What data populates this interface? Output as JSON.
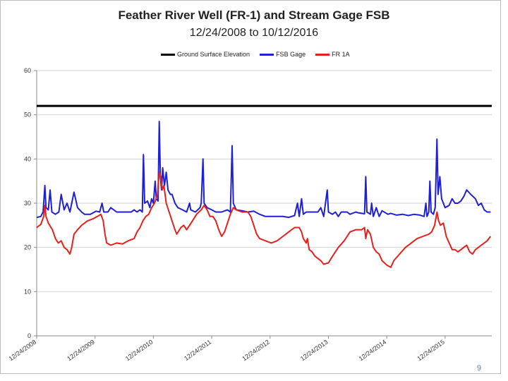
{
  "chart_data": {
    "type": "line",
    "title": "Feather River Well (FR-1) and Stream Gage FSB",
    "subtitle": "12/24/2008 to 10/12/2016",
    "xlabel": "",
    "ylabel": "",
    "ylim": [
      0,
      60
    ],
    "yticks": [
      "0",
      "10",
      "20",
      "30",
      "40",
      "50",
      "60"
    ],
    "xlim": [
      2008.98,
      2016.78
    ],
    "x_tick_labels": [
      {
        "label": "12/24/2008",
        "x": 2008.98
      },
      {
        "label": "12/24/2009",
        "x": 2009.98
      },
      {
        "label": "12/24/2010",
        "x": 2010.98
      },
      {
        "label": "12/24/2011",
        "x": 2011.98
      },
      {
        "label": "12/24/2012",
        "x": 2012.98
      },
      {
        "label": "12/24/2013",
        "x": 2013.98
      },
      {
        "label": "12/24/2014",
        "x": 2014.98
      },
      {
        "label": "12/24/2015",
        "x": 2015.98
      }
    ],
    "grid": "horizontal",
    "legend_position": "top",
    "series": [
      {
        "name": "Ground Surface Elevation",
        "color": "#000000",
        "points": [
          [
            2008.98,
            52
          ],
          [
            2016.78,
            52
          ]
        ]
      },
      {
        "name": "FSB Gage",
        "color": "#1f1fd6",
        "points": [
          [
            2008.98,
            26.8
          ],
          [
            2009.05,
            27
          ],
          [
            2009.09,
            28
          ],
          [
            2009.12,
            34
          ],
          [
            2009.14,
            29
          ],
          [
            2009.18,
            28.5
          ],
          [
            2009.21,
            33
          ],
          [
            2009.24,
            28
          ],
          [
            2009.3,
            27.5
          ],
          [
            2009.36,
            28
          ],
          [
            2009.4,
            32
          ],
          [
            2009.45,
            28.5
          ],
          [
            2009.5,
            30
          ],
          [
            2009.55,
            28
          ],
          [
            2009.62,
            32.5
          ],
          [
            2009.68,
            29
          ],
          [
            2009.75,
            28
          ],
          [
            2009.8,
            27.5
          ],
          [
            2009.9,
            27.5
          ],
          [
            2010.0,
            28.2
          ],
          [
            2010.06,
            28
          ],
          [
            2010.1,
            30
          ],
          [
            2010.13,
            28
          ],
          [
            2010.2,
            28
          ],
          [
            2010.25,
            29
          ],
          [
            2010.35,
            28
          ],
          [
            2010.45,
            28
          ],
          [
            2010.55,
            28
          ],
          [
            2010.6,
            28
          ],
          [
            2010.65,
            28.5
          ],
          [
            2010.7,
            28
          ],
          [
            2010.75,
            28.5
          ],
          [
            2010.79,
            28
          ],
          [
            2010.81,
            41
          ],
          [
            2010.83,
            30
          ],
          [
            2010.88,
            30.5
          ],
          [
            2010.92,
            29
          ],
          [
            2010.95,
            31
          ],
          [
            2010.98,
            30
          ],
          [
            2011.01,
            35
          ],
          [
            2011.03,
            31
          ],
          [
            2011.06,
            30.5
          ],
          [
            2011.08,
            48.5
          ],
          [
            2011.1,
            36
          ],
          [
            2011.12,
            33
          ],
          [
            2011.14,
            38
          ],
          [
            2011.17,
            34
          ],
          [
            2011.2,
            37
          ],
          [
            2011.23,
            33
          ],
          [
            2011.27,
            32
          ],
          [
            2011.3,
            32
          ],
          [
            2011.35,
            30
          ],
          [
            2011.4,
            29
          ],
          [
            2011.48,
            28.5
          ],
          [
            2011.55,
            28
          ],
          [
            2011.6,
            30
          ],
          [
            2011.62,
            28.5
          ],
          [
            2011.7,
            28
          ],
          [
            2011.78,
            29
          ],
          [
            2011.8,
            30
          ],
          [
            2011.83,
            40
          ],
          [
            2011.85,
            30
          ],
          [
            2011.9,
            29
          ],
          [
            2011.98,
            28.5
          ],
          [
            2012.05,
            28
          ],
          [
            2012.15,
            28
          ],
          [
            2012.25,
            28.5
          ],
          [
            2012.3,
            28
          ],
          [
            2012.33,
            43
          ],
          [
            2012.35,
            30
          ],
          [
            2012.4,
            28.5
          ],
          [
            2012.5,
            28.3
          ],
          [
            2012.6,
            28
          ],
          [
            2012.7,
            28.2
          ],
          [
            2012.8,
            27.5
          ],
          [
            2012.9,
            27
          ],
          [
            2013.0,
            27
          ],
          [
            2013.1,
            27
          ],
          [
            2013.2,
            27
          ],
          [
            2013.3,
            26.8
          ],
          [
            2013.4,
            27.2
          ],
          [
            2013.45,
            30
          ],
          [
            2013.48,
            27
          ],
          [
            2013.52,
            31
          ],
          [
            2013.55,
            27.5
          ],
          [
            2013.6,
            28
          ],
          [
            2013.7,
            28
          ],
          [
            2013.8,
            28
          ],
          [
            2013.85,
            29
          ],
          [
            2013.9,
            27
          ],
          [
            2013.96,
            33
          ],
          [
            2013.98,
            28
          ],
          [
            2014.05,
            27.5
          ],
          [
            2014.1,
            28
          ],
          [
            2014.15,
            27
          ],
          [
            2014.2,
            28
          ],
          [
            2014.3,
            28
          ],
          [
            2014.35,
            27.5
          ],
          [
            2014.45,
            28
          ],
          [
            2014.5,
            27.8
          ],
          [
            2014.6,
            27.6
          ],
          [
            2014.62,
            36
          ],
          [
            2014.64,
            28
          ],
          [
            2014.7,
            27.5
          ],
          [
            2014.72,
            30
          ],
          [
            2014.75,
            27
          ],
          [
            2014.8,
            29
          ],
          [
            2014.85,
            27
          ],
          [
            2014.9,
            28.3
          ],
          [
            2015.0,
            27.5
          ],
          [
            2015.05,
            27.7
          ],
          [
            2015.15,
            27.3
          ],
          [
            2015.25,
            27.5
          ],
          [
            2015.35,
            27.2
          ],
          [
            2015.45,
            27.5
          ],
          [
            2015.55,
            27.3
          ],
          [
            2015.62,
            27
          ],
          [
            2015.65,
            30
          ],
          [
            2015.67,
            27
          ],
          [
            2015.7,
            28
          ],
          [
            2015.72,
            35
          ],
          [
            2015.74,
            28
          ],
          [
            2015.78,
            27.5
          ],
          [
            2015.81,
            29
          ],
          [
            2015.84,
            44.5
          ],
          [
            2015.86,
            32
          ],
          [
            2015.89,
            36
          ],
          [
            2015.92,
            31
          ],
          [
            2015.95,
            30
          ],
          [
            2015.98,
            29
          ],
          [
            2016.05,
            29.5
          ],
          [
            2016.1,
            31
          ],
          [
            2016.15,
            30
          ],
          [
            2016.2,
            30
          ],
          [
            2016.25,
            30.5
          ],
          [
            2016.3,
            31.5
          ],
          [
            2016.35,
            33
          ],
          [
            2016.42,
            32
          ],
          [
            2016.5,
            31
          ],
          [
            2016.55,
            29.5
          ],
          [
            2016.6,
            30
          ],
          [
            2016.65,
            28.5
          ],
          [
            2016.7,
            28
          ],
          [
            2016.76,
            28
          ]
        ]
      },
      {
        "name": "FR 1A",
        "color": "#e8201c",
        "points": [
          [
            2008.98,
            24.5
          ],
          [
            2009.05,
            25.2
          ],
          [
            2009.1,
            27
          ],
          [
            2009.12,
            29.5
          ],
          [
            2009.14,
            27
          ],
          [
            2009.18,
            25.5
          ],
          [
            2009.25,
            24
          ],
          [
            2009.3,
            22
          ],
          [
            2009.35,
            21
          ],
          [
            2009.4,
            21.5
          ],
          [
            2009.45,
            20
          ],
          [
            2009.5,
            19.5
          ],
          [
            2009.55,
            18.5
          ],
          [
            2009.58,
            20
          ],
          [
            2009.62,
            23
          ],
          [
            2009.68,
            24
          ],
          [
            2009.75,
            25
          ],
          [
            2009.85,
            26
          ],
          [
            2009.95,
            26.5
          ],
          [
            2010.02,
            27
          ],
          [
            2010.08,
            27.5
          ],
          [
            2010.12,
            26
          ],
          [
            2010.15,
            23
          ],
          [
            2010.18,
            21
          ],
          [
            2010.25,
            20.5
          ],
          [
            2010.35,
            21
          ],
          [
            2010.45,
            20.8
          ],
          [
            2010.55,
            21.5
          ],
          [
            2010.65,
            22
          ],
          [
            2010.7,
            23.5
          ],
          [
            2010.75,
            24.5
          ],
          [
            2010.8,
            26
          ],
          [
            2010.85,
            27
          ],
          [
            2010.9,
            27.5
          ],
          [
            2010.95,
            29
          ],
          [
            2011.0,
            30
          ],
          [
            2011.05,
            32
          ],
          [
            2011.08,
            37
          ],
          [
            2011.11,
            36
          ],
          [
            2011.13,
            33
          ],
          [
            2011.16,
            34
          ],
          [
            2011.2,
            30
          ],
          [
            2011.25,
            28
          ],
          [
            2011.3,
            26
          ],
          [
            2011.35,
            24
          ],
          [
            2011.38,
            23
          ],
          [
            2011.45,
            24.5
          ],
          [
            2011.5,
            25
          ],
          [
            2011.55,
            24
          ],
          [
            2011.6,
            25
          ],
          [
            2011.65,
            26
          ],
          [
            2011.72,
            27.5
          ],
          [
            2011.8,
            28.5
          ],
          [
            2011.85,
            29.5
          ],
          [
            2011.9,
            28.5
          ],
          [
            2011.95,
            27
          ],
          [
            2012.0,
            27
          ],
          [
            2012.05,
            26
          ],
          [
            2012.1,
            24
          ],
          [
            2012.15,
            22.5
          ],
          [
            2012.2,
            23.5
          ],
          [
            2012.25,
            25.5
          ],
          [
            2012.3,
            27.5
          ],
          [
            2012.35,
            29
          ],
          [
            2012.4,
            28.5
          ],
          [
            2012.5,
            28
          ],
          [
            2012.6,
            28
          ],
          [
            2012.65,
            27
          ],
          [
            2012.7,
            25
          ],
          [
            2012.75,
            23
          ],
          [
            2012.8,
            22
          ],
          [
            2012.9,
            21.5
          ],
          [
            2013.0,
            21
          ],
          [
            2013.1,
            21.5
          ],
          [
            2013.2,
            22.5
          ],
          [
            2013.3,
            23.5
          ],
          [
            2013.4,
            24.5
          ],
          [
            2013.48,
            24.5
          ],
          [
            2013.52,
            23.5
          ],
          [
            2013.55,
            22
          ],
          [
            2013.6,
            21
          ],
          [
            2013.62,
            22
          ],
          [
            2013.65,
            19.5
          ],
          [
            2013.7,
            19
          ],
          [
            2013.75,
            18
          ],
          [
            2013.8,
            17.5
          ],
          [
            2013.85,
            17
          ],
          [
            2013.9,
            16.2
          ],
          [
            2013.98,
            16.5
          ],
          [
            2014.05,
            18
          ],
          [
            2014.15,
            20
          ],
          [
            2014.25,
            21.5
          ],
          [
            2014.35,
            23.5
          ],
          [
            2014.45,
            24
          ],
          [
            2014.55,
            24
          ],
          [
            2014.6,
            24.5
          ],
          [
            2014.62,
            22
          ],
          [
            2014.65,
            24
          ],
          [
            2014.7,
            23
          ],
          [
            2014.75,
            20
          ],
          [
            2014.8,
            19
          ],
          [
            2014.85,
            18.5
          ],
          [
            2014.9,
            17
          ],
          [
            2014.98,
            16
          ],
          [
            2015.05,
            15.5
          ],
          [
            2015.1,
            17
          ],
          [
            2015.2,
            18.5
          ],
          [
            2015.3,
            20
          ],
          [
            2015.4,
            21
          ],
          [
            2015.5,
            22
          ],
          [
            2015.6,
            22.5
          ],
          [
            2015.7,
            23
          ],
          [
            2015.75,
            23.5
          ],
          [
            2015.8,
            25
          ],
          [
            2015.84,
            28
          ],
          [
            2015.87,
            26
          ],
          [
            2015.9,
            25
          ],
          [
            2015.95,
            25.5
          ],
          [
            2016.0,
            22.5
          ],
          [
            2016.05,
            21
          ],
          [
            2016.1,
            19.5
          ],
          [
            2016.15,
            19.5
          ],
          [
            2016.2,
            19
          ],
          [
            2016.25,
            19.5
          ],
          [
            2016.3,
            20
          ],
          [
            2016.35,
            20.5
          ],
          [
            2016.4,
            19
          ],
          [
            2016.45,
            18.5
          ],
          [
            2016.5,
            19.5
          ],
          [
            2016.55,
            20
          ],
          [
            2016.6,
            20.5
          ],
          [
            2016.65,
            21
          ],
          [
            2016.7,
            21.5
          ],
          [
            2016.76,
            22.5
          ]
        ]
      }
    ]
  },
  "page": {
    "number": "9"
  }
}
